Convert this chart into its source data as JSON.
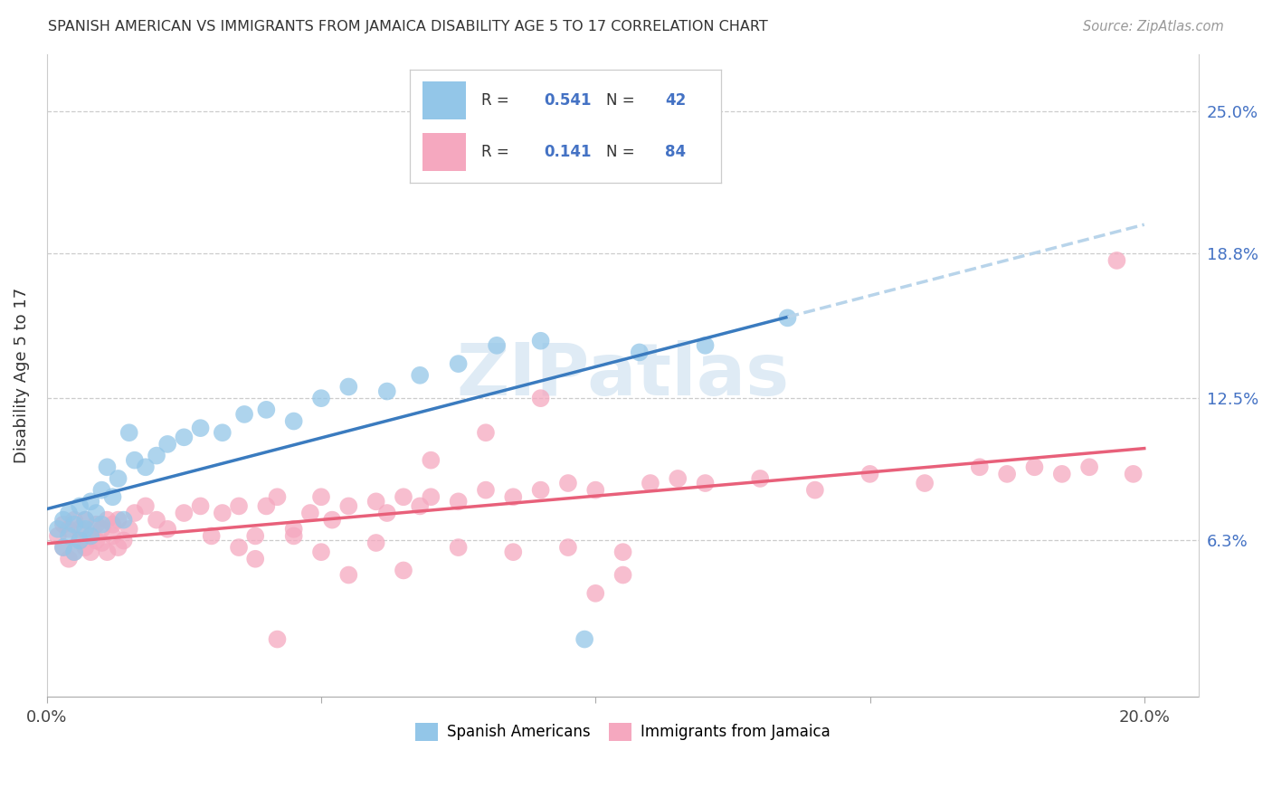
{
  "title": "SPANISH AMERICAN VS IMMIGRANTS FROM JAMAICA DISABILITY AGE 5 TO 17 CORRELATION CHART",
  "source": "Source: ZipAtlas.com",
  "ylabel": "Disability Age 5 to 17",
  "xlim": [
    0.0,
    0.21
  ],
  "ylim": [
    -0.005,
    0.275
  ],
  "ytick_labels": [
    "6.3%",
    "12.5%",
    "18.8%",
    "25.0%"
  ],
  "ytick_values": [
    0.063,
    0.125,
    0.188,
    0.25
  ],
  "xtick_values": [
    0.0,
    0.05,
    0.1,
    0.15,
    0.2
  ],
  "xtick_labels": [
    "0.0%",
    "",
    "",
    "",
    "20.0%"
  ],
  "grid_color": "#cccccc",
  "background_color": "#ffffff",
  "blue_color": "#93c6e8",
  "pink_color": "#f5a8bf",
  "blue_line_color": "#3a7bbf",
  "pink_line_color": "#e8607a",
  "dashed_line_color": "#b8d4ea",
  "text_color_blue": "#4472c4",
  "legend_R1": "0.541",
  "legend_N1": "42",
  "legend_R2": "0.141",
  "legend_N2": "84",
  "label1": "Spanish Americans",
  "label2": "Immigrants from Jamaica",
  "watermark": "ZIPatlas",
  "blue_x": [
    0.002,
    0.003,
    0.003,
    0.004,
    0.004,
    0.005,
    0.005,
    0.006,
    0.006,
    0.007,
    0.007,
    0.008,
    0.008,
    0.009,
    0.01,
    0.01,
    0.011,
    0.012,
    0.013,
    0.014,
    0.015,
    0.016,
    0.018,
    0.02,
    0.022,
    0.025,
    0.028,
    0.032,
    0.036,
    0.04,
    0.045,
    0.05,
    0.055,
    0.062,
    0.068,
    0.075,
    0.082,
    0.09,
    0.098,
    0.108,
    0.12,
    0.135
  ],
  "blue_y": [
    0.068,
    0.06,
    0.072,
    0.065,
    0.075,
    0.058,
    0.07,
    0.063,
    0.078,
    0.068,
    0.072,
    0.08,
    0.065,
    0.075,
    0.085,
    0.07,
    0.095,
    0.082,
    0.09,
    0.072,
    0.11,
    0.098,
    0.095,
    0.1,
    0.105,
    0.108,
    0.112,
    0.11,
    0.118,
    0.12,
    0.115,
    0.125,
    0.13,
    0.128,
    0.135,
    0.14,
    0.148,
    0.15,
    0.02,
    0.145,
    0.148,
    0.16
  ],
  "pink_x": [
    0.002,
    0.003,
    0.003,
    0.004,
    0.004,
    0.005,
    0.005,
    0.006,
    0.006,
    0.007,
    0.007,
    0.008,
    0.008,
    0.009,
    0.009,
    0.01,
    0.01,
    0.011,
    0.011,
    0.012,
    0.012,
    0.013,
    0.013,
    0.014,
    0.015,
    0.016,
    0.018,
    0.02,
    0.022,
    0.025,
    0.028,
    0.03,
    0.032,
    0.035,
    0.038,
    0.04,
    0.042,
    0.045,
    0.048,
    0.05,
    0.052,
    0.055,
    0.06,
    0.062,
    0.065,
    0.068,
    0.07,
    0.075,
    0.08,
    0.085,
    0.09,
    0.095,
    0.1,
    0.105,
    0.11,
    0.115,
    0.12,
    0.13,
    0.14,
    0.15,
    0.16,
    0.17,
    0.175,
    0.18,
    0.185,
    0.19,
    0.195,
    0.198,
    0.035,
    0.038,
    0.042,
    0.045,
    0.05,
    0.055,
    0.06,
    0.065,
    0.07,
    0.075,
    0.08,
    0.085,
    0.09,
    0.095,
    0.1,
    0.105
  ],
  "pink_y": [
    0.065,
    0.06,
    0.07,
    0.055,
    0.068,
    0.058,
    0.072,
    0.063,
    0.068,
    0.06,
    0.072,
    0.065,
    0.058,
    0.07,
    0.063,
    0.068,
    0.062,
    0.072,
    0.058,
    0.07,
    0.065,
    0.06,
    0.072,
    0.063,
    0.068,
    0.075,
    0.078,
    0.072,
    0.068,
    0.075,
    0.078,
    0.065,
    0.075,
    0.078,
    0.065,
    0.078,
    0.082,
    0.068,
    0.075,
    0.082,
    0.072,
    0.078,
    0.08,
    0.075,
    0.082,
    0.078,
    0.082,
    0.08,
    0.085,
    0.082,
    0.085,
    0.088,
    0.085,
    0.058,
    0.088,
    0.09,
    0.088,
    0.09,
    0.085,
    0.092,
    0.088,
    0.095,
    0.092,
    0.095,
    0.092,
    0.095,
    0.185,
    0.092,
    0.06,
    0.055,
    0.02,
    0.065,
    0.058,
    0.048,
    0.062,
    0.05,
    0.098,
    0.06,
    0.11,
    0.058,
    0.125,
    0.06,
    0.04,
    0.048
  ]
}
